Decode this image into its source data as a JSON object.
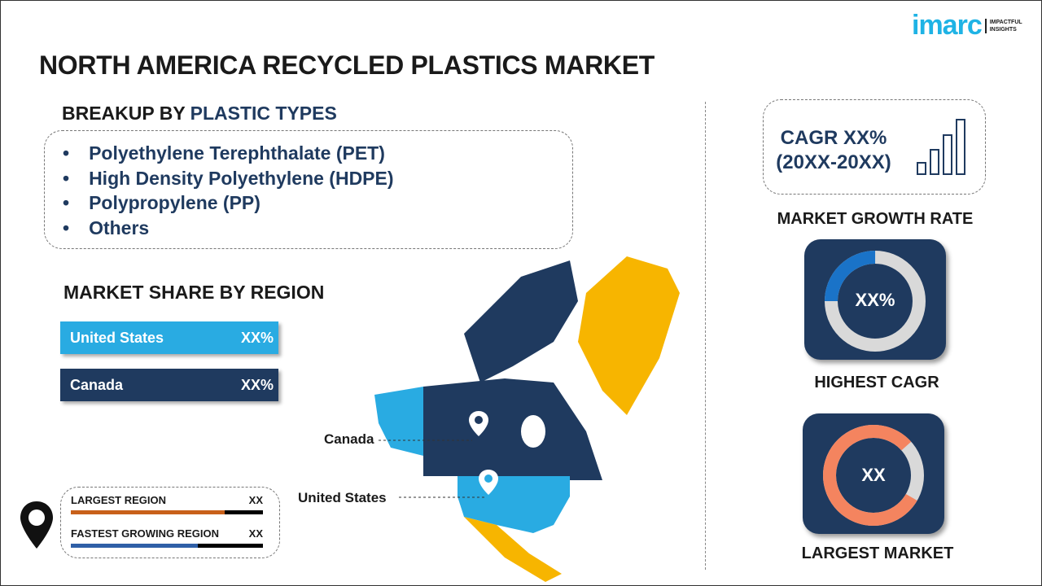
{
  "title": "NORTH AMERICA RECYCLED PLASTICS MARKET",
  "logo": {
    "brand": "imarc",
    "tagline_1": "IMPACTFUL",
    "tagline_2": "INSIGHTS"
  },
  "breakup": {
    "heading_prefix": "BREAKUP BY ",
    "heading_highlight": "PLASTIC TYPES",
    "items": [
      "Polyethylene Terephthalate (PET)",
      "High Density Polyethylene (HDPE)",
      "Polypropylene (PP)",
      "Others"
    ]
  },
  "region_share": {
    "heading": "MARKET SHARE BY REGION",
    "regions": [
      {
        "name": "United States",
        "value": "XX%",
        "color": "#29abe2"
      },
      {
        "name": "Canada",
        "value": "XX%",
        "color": "#1f3a5f"
      }
    ]
  },
  "stats": {
    "largest_label": "LARGEST REGION",
    "largest_value": "XX",
    "largest_fill_pct": 80,
    "largest_color": "#c8601a",
    "fastest_label": "FASTEST GROWING REGION",
    "fastest_value": "XX",
    "fastest_fill_pct": 66,
    "fastest_color": "#2f5fa7"
  },
  "map": {
    "canada_label": "Canada",
    "us_label": "United States",
    "colors": {
      "canada": "#1f3a5f",
      "us": "#29abe2",
      "greenland": "#f7b500",
      "mexico": "#f7b500"
    }
  },
  "cagr": {
    "line1": "CAGR XX%",
    "line2": "(20XX-20XX)",
    "label": "MARKET GROWTH RATE"
  },
  "highest_cagr": {
    "value": "XX%",
    "label": "HIGHEST CAGR",
    "fill_pct": 25,
    "color": "#1a73c8"
  },
  "largest_market": {
    "value": "XX",
    "label": "LARGEST MARKET",
    "fill_pct": 80,
    "color": "#f4845f"
  }
}
